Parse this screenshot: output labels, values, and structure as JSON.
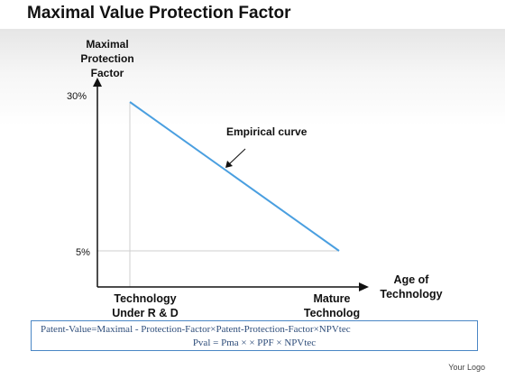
{
  "title": "Maximal Value Protection Factor",
  "diagram": {
    "y_axis_title_lines": [
      "Maximal",
      "Protection",
      "Factor"
    ],
    "y_tick_high": "30%",
    "y_tick_low": "5%",
    "curve_label": "Empirical curve",
    "x_axis_title_lines": [
      "Age of",
      "Technology"
    ],
    "x_start_label_lines": [
      "Technology",
      "Under R & D"
    ],
    "x_end_label_lines": [
      "Mature",
      "Technolog"
    ],
    "line_color": "#4a9fe0"
  },
  "formula": {
    "line1": "Patent-Value=Maximal - Protection-Factor×Patent-Protection-Factor×NPVtec",
    "line2": "Pval = Pma × × PPF × NPVtec"
  },
  "logo": "Your Logo"
}
